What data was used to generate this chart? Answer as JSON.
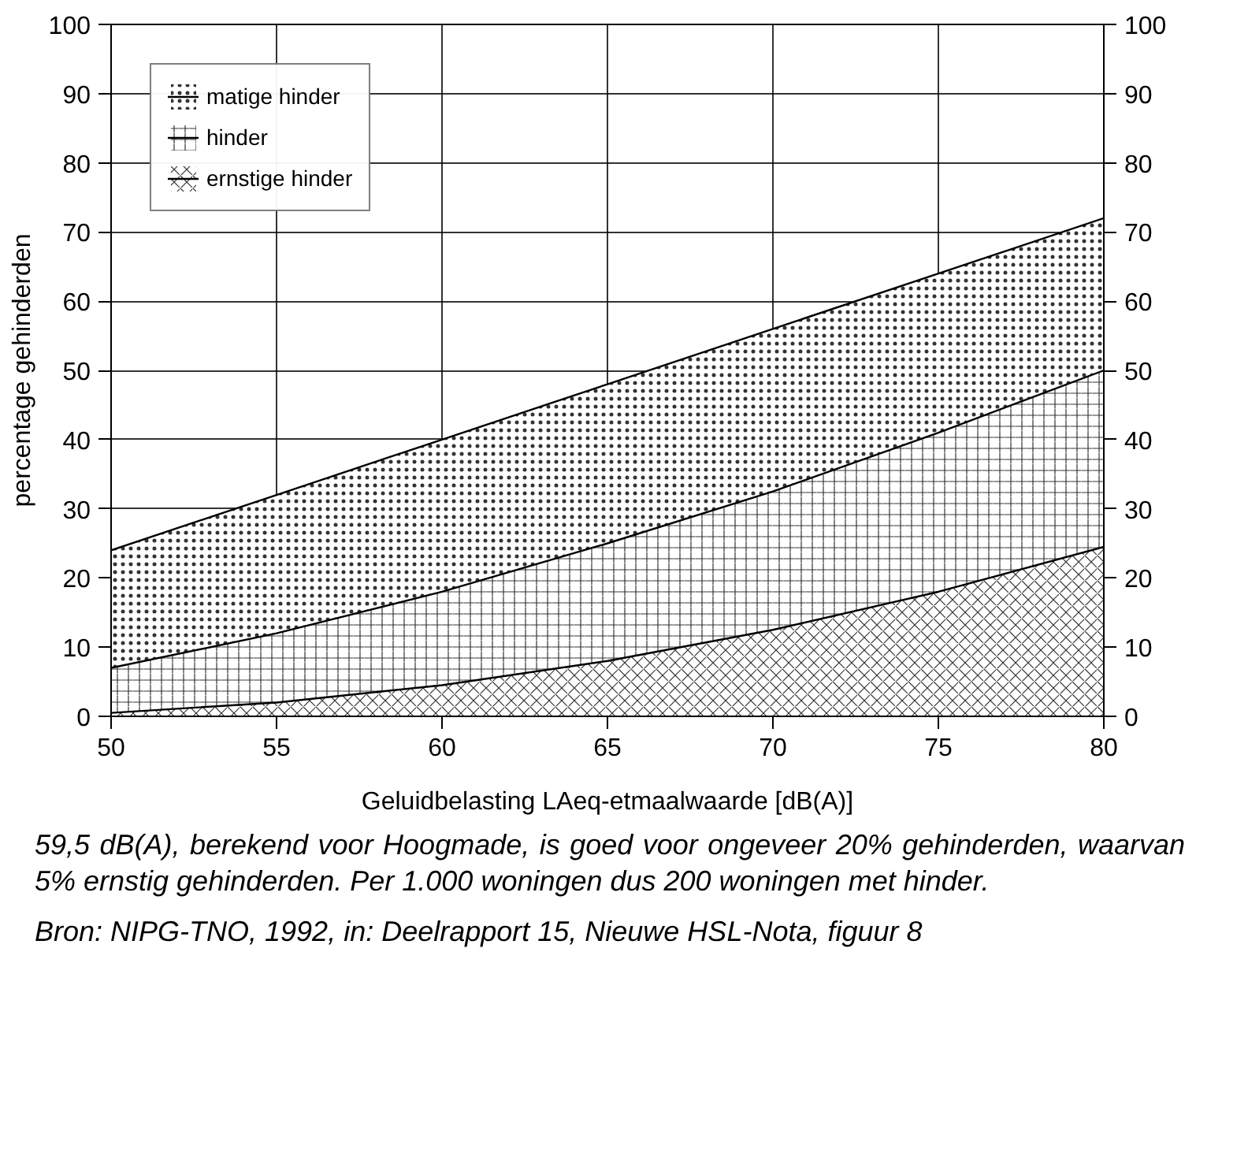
{
  "chart_data": {
    "type": "area",
    "xlabel": "Geluidbelasting LAeq-etmaalwaarde [dB(A)]",
    "ylabel": "percentage gehinderden",
    "x": [
      50,
      55,
      60,
      65,
      70,
      75,
      80
    ],
    "series": [
      {
        "name": "matige hinder",
        "color": "#000000",
        "values": [
          24,
          32,
          40,
          48,
          56,
          64,
          72
        ]
      },
      {
        "name": "hinder",
        "color": "#000000",
        "values": [
          7,
          12,
          18,
          25,
          32.5,
          41,
          50
        ]
      },
      {
        "name": "ernstige hinder",
        "color": "#000000",
        "values": [
          0.5,
          2,
          4.5,
          8,
          12.5,
          18,
          24.5
        ]
      }
    ],
    "xlim": [
      50,
      80
    ],
    "xticks": [
      50,
      55,
      60,
      65,
      70,
      75,
      80
    ],
    "ylim": [
      0,
      100
    ],
    "yticks": [
      0,
      10,
      20,
      30,
      40,
      50,
      60,
      70,
      80,
      90,
      100
    ],
    "y2lim": [
      0,
      100
    ],
    "y2ticks": [
      0,
      10,
      20,
      30,
      40,
      50,
      60,
      70,
      80,
      90,
      100
    ],
    "grid": true,
    "legend": "top left",
    "annotations": [
      "59,5 dB(A), berekend voor Hoogmade, is goed voor ongeveer 20% gehinderden, waarvan 5% ernstig gehinderden. Per 1.000 woningen dus 200 woningen met hinder.",
      "Bron: NIPG-TNO, 1992, in: Deelrapport 15, Nieuwe HSL-Nota, figuur 8"
    ]
  }
}
